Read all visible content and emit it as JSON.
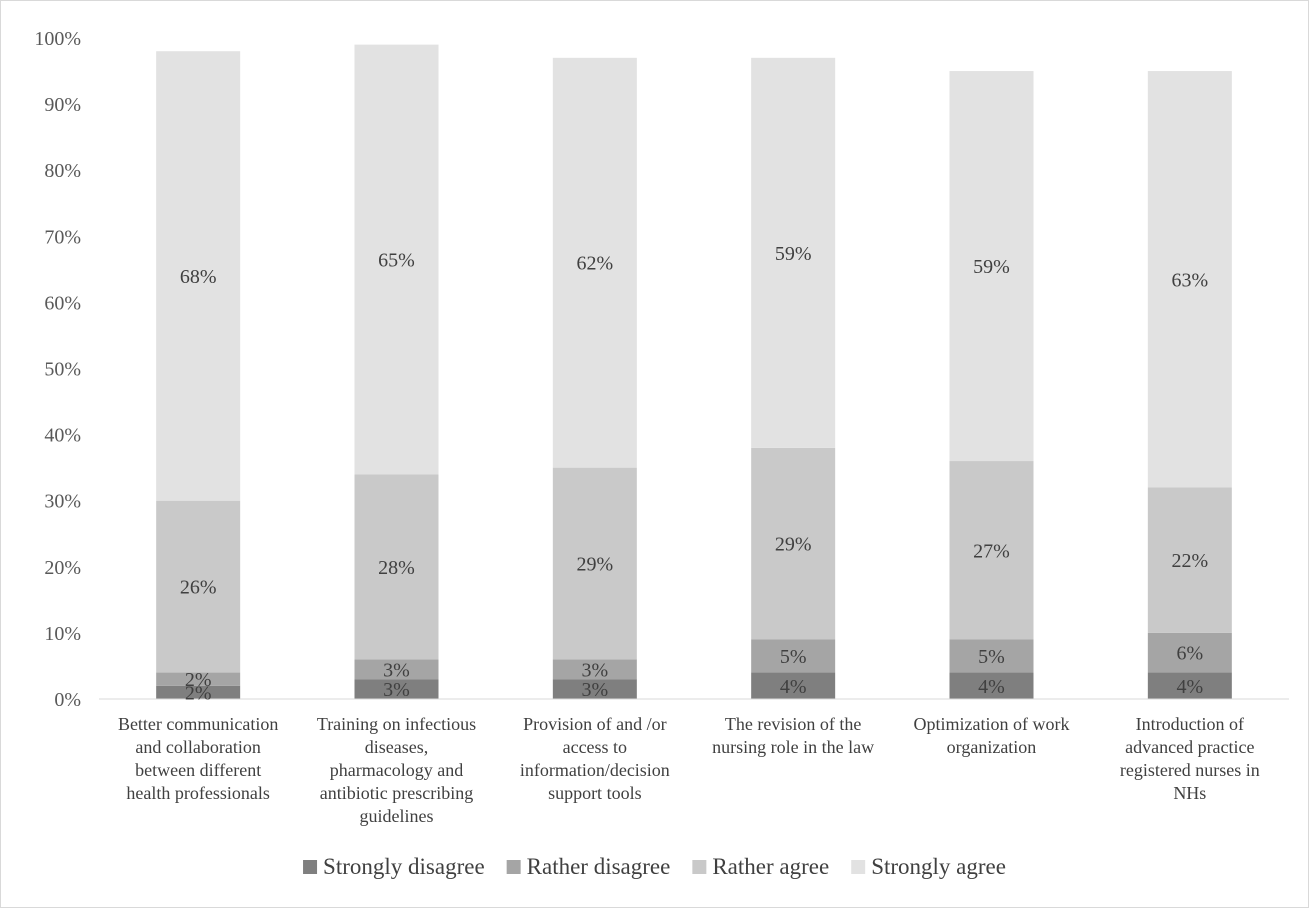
{
  "chart_data": {
    "type": "bar",
    "stacked": true,
    "title": "",
    "xlabel": "",
    "ylabel": "",
    "ylim": [
      0,
      100
    ],
    "y_ticks": [
      "0%",
      "10%",
      "20%",
      "30%",
      "40%",
      "50%",
      "60%",
      "70%",
      "80%",
      "90%",
      "100%"
    ],
    "grid": false,
    "legend_position": "bottom",
    "categories": [
      [
        "Better communication",
        "and collaboration",
        "between different",
        "health professionals"
      ],
      [
        "Training on infectious",
        "diseases,",
        "pharmacology and",
        "antibiotic prescribing",
        "guidelines"
      ],
      [
        "Provision of and /or",
        "access to",
        "information/decision",
        "support tools"
      ],
      [
        "The revision of the",
        "nursing role in the law"
      ],
      [
        "Optimization of work",
        "organization"
      ],
      [
        "Introduction of",
        "advanced practice",
        "registered nurses in",
        "NHs"
      ]
    ],
    "series": [
      {
        "name": "Strongly disagree",
        "color": "#7f7f7f",
        "values": [
          2,
          3,
          3,
          4,
          4,
          4
        ],
        "labels": [
          "2%",
          "3%",
          "3%",
          "4%",
          "4%",
          "4%"
        ]
      },
      {
        "name": "Rather disagree",
        "color": "#a5a5a5",
        "values": [
          2,
          3,
          3,
          5,
          5,
          6
        ],
        "labels": [
          "2%",
          "3%",
          "3%",
          "5%",
          "5%",
          "6%"
        ]
      },
      {
        "name": "Rather agree",
        "color": "#c9c9c9",
        "values": [
          26,
          28,
          29,
          29,
          27,
          22
        ],
        "labels": [
          "26%",
          "28%",
          "29%",
          "29%",
          "27%",
          "22%"
        ]
      },
      {
        "name": "Strongly agree",
        "color": "#e2e2e2",
        "values": [
          68,
          65,
          62,
          59,
          59,
          63
        ],
        "labels": [
          "68%",
          "65%",
          "62%",
          "59%",
          "59%",
          "63%"
        ]
      }
    ]
  }
}
